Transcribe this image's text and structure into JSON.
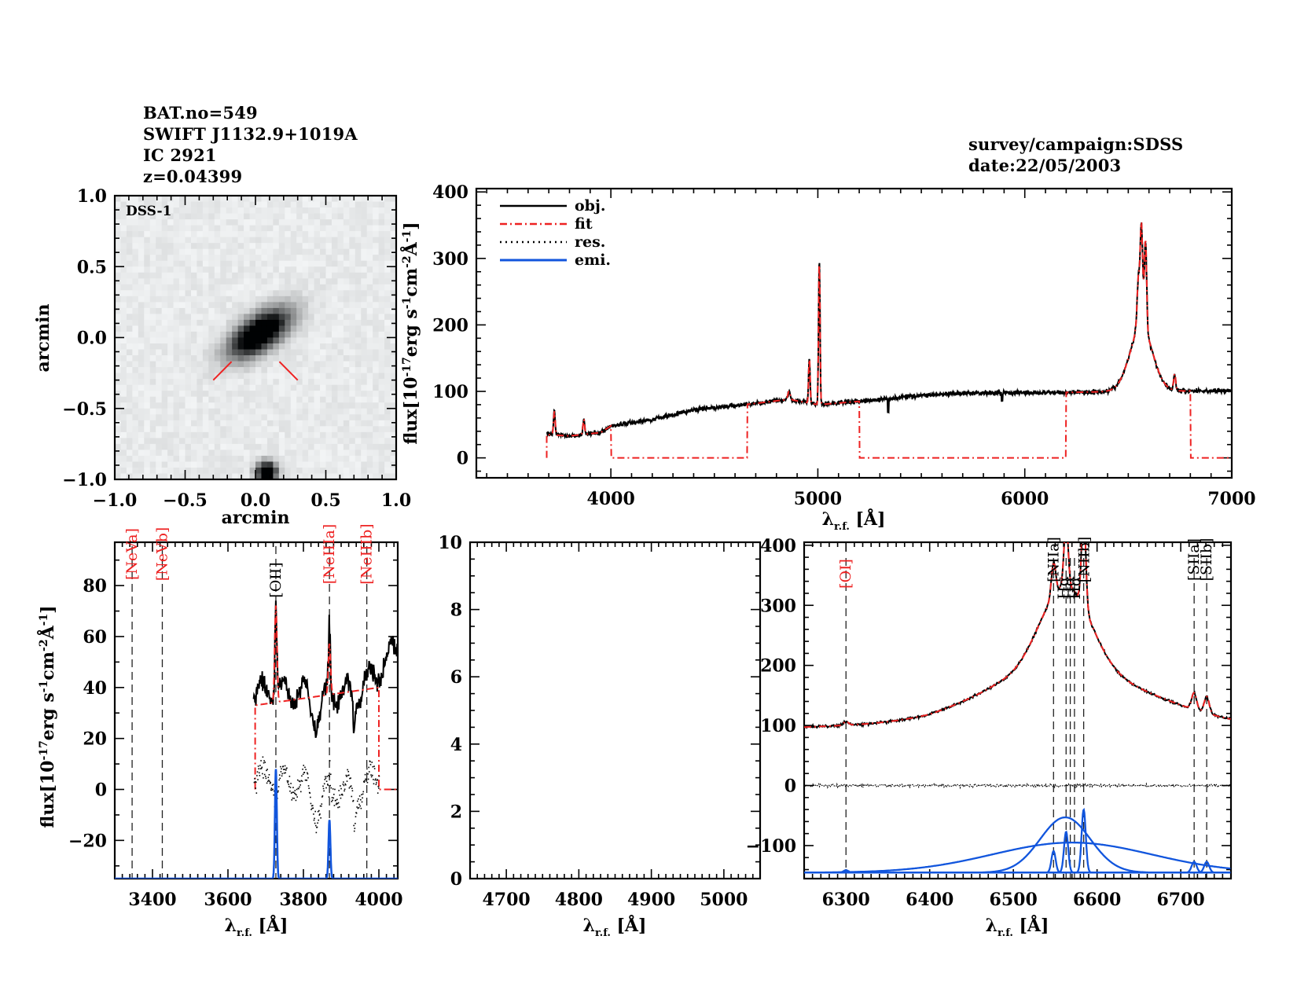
{
  "header": {
    "left_lines": [
      "BAT.no=549",
      "SWIFT J1132.9+1019A",
      "IC 2921",
      "z=0.04399"
    ],
    "right_lines": [
      "survey/campaign:SDSS",
      "date:22/05/2003"
    ]
  },
  "colors": {
    "obj": "#000000",
    "fit": "#ee2222",
    "res": "#000000",
    "emi": "#1155dd",
    "line_label_red": "#ee2222",
    "line_label_black": "#000000"
  },
  "chart_data": [
    {
      "id": "image",
      "type": "heatmap",
      "title": "",
      "label": "DSS-1",
      "xlabel": "arcmin",
      "ylabel": "arcmin",
      "xlim": [
        -1.0,
        1.0
      ],
      "ylim": [
        -1.0,
        1.0
      ],
      "xticks": [
        "-1.0",
        "-0.5",
        "0.0",
        "0.5",
        "1.0"
      ],
      "yticks": [
        "1.0",
        "0.5",
        "0.0",
        "-0.5",
        "-1.0"
      ],
      "sources": [
        {
          "name": "target galaxy",
          "x": 0.03,
          "y": 0.03,
          "major": 0.17,
          "minor": 0.08,
          "angle_deg": 35
        },
        {
          "name": "compact source",
          "x": 0.08,
          "y": -0.95,
          "major": 0.05,
          "minor": 0.05,
          "angle_deg": 0
        }
      ],
      "markers": [
        {
          "x1": -0.3,
          "y1": -0.3,
          "x2": -0.17,
          "y2": -0.17
        },
        {
          "x1": 0.17,
          "y1": -0.17,
          "x2": 0.3,
          "y2": -0.3
        }
      ]
    },
    {
      "id": "full",
      "type": "line",
      "xlabel": "λr.f. [Å]",
      "ylabel": "flux[10^-17 erg s^-1 cm^-2 Å^-1]",
      "xlim": [
        3350,
        7000
      ],
      "ylim": [
        -30,
        405
      ],
      "xticks": [
        4000,
        5000,
        6000,
        7000
      ],
      "yticks": [
        0,
        100,
        200,
        300,
        400
      ],
      "legend": {
        "position": "top-left",
        "entries": [
          "obj.",
          "fit",
          "res.",
          "emi."
        ]
      },
      "continuum": [
        [
          3690,
          35
        ],
        [
          3800,
          33
        ],
        [
          3950,
          38
        ],
        [
          4000,
          48
        ],
        [
          4200,
          58
        ],
        [
          4400,
          72
        ],
        [
          4700,
          82
        ],
        [
          4860,
          88
        ],
        [
          5000,
          80
        ],
        [
          5200,
          85
        ],
        [
          5500,
          94
        ],
        [
          5800,
          98
        ],
        [
          6100,
          98
        ],
        [
          6300,
          99
        ],
        [
          6450,
          100
        ],
        [
          7000,
          101
        ]
      ],
      "emission_lines": [
        {
          "name": "[OII]",
          "wave": 3727,
          "peak": 70,
          "sigma": 4
        },
        {
          "name": "[NeIII]",
          "wave": 3869,
          "peak": 58,
          "sigma": 4
        },
        {
          "name": "Hβ",
          "wave": 4861,
          "peak": 100,
          "sigma": 6
        },
        {
          "name": "[OIII]a",
          "wave": 4959,
          "peak": 150,
          "sigma": 3.5
        },
        {
          "name": "[OIII]b",
          "wave": 5007,
          "peak": 298,
          "sigma": 3.5
        },
        {
          "name": "Hα+[NII]",
          "wave": 6563,
          "peak": 315,
          "sigma": 6
        },
        {
          "name": "[SII]",
          "wave": 6724,
          "peak": 125,
          "sigma": 5
        }
      ],
      "fit_windows": [
        [
          3690,
          4000
        ],
        [
          4660,
          5200
        ],
        [
          6200,
          6800
        ]
      ],
      "fit_window_ends": [
        7000
      ]
    },
    {
      "id": "oii_neon",
      "type": "line",
      "xlabel": "λr.f. [Å]",
      "ylabel": "flux[10^-17 erg s^-1 cm^-2 Å^-1]",
      "xlim": [
        3300,
        4050
      ],
      "ylim": [
        -35,
        97
      ],
      "xticks": [
        3400,
        3600,
        3800,
        4000
      ],
      "yticks": [
        -20,
        0,
        20,
        40,
        60,
        80
      ],
      "lines": [
        {
          "label": "[NeVa]",
          "wave": 3346,
          "color": "red"
        },
        {
          "label": "[NeVb]",
          "wave": 3426,
          "color": "red"
        },
        {
          "label": "[OII]",
          "wave": 3727,
          "color": "black"
        },
        {
          "label": "[NeIIIa]",
          "wave": 3869,
          "color": "red"
        },
        {
          "label": "[NeIIIb]",
          "wave": 3968,
          "color": "red"
        }
      ],
      "obj_range": [
        3668,
        4050
      ],
      "fit_range": [
        3672,
        4000
      ],
      "fit_continuum": [
        [
          3672,
          33
        ],
        [
          4000,
          40
        ]
      ],
      "emi_baseline": -35,
      "emi_peaks": [
        {
          "wave": 3727,
          "height": 43,
          "sigma": 2.5
        },
        {
          "wave": 3869,
          "height": 23,
          "sigma": 2.5
        }
      ]
    },
    {
      "id": "hbeta",
      "type": "line",
      "xlabel": "λr.f. [Å]",
      "ylabel": "",
      "xlim": [
        4650,
        5050
      ],
      "ylim": [
        0,
        10
      ],
      "xticks": [
        4700,
        4800,
        4900,
        5000
      ],
      "yticks": [
        0,
        2,
        4,
        6,
        8,
        10
      ],
      "series": []
    },
    {
      "id": "halpha",
      "type": "line",
      "xlabel": "λr.f. [Å]",
      "ylabel": "",
      "xlim": [
        6250,
        6760
      ],
      "ylim": [
        -155,
        405
      ],
      "xticks": [
        6300,
        6400,
        6500,
        6600,
        6700
      ],
      "yticks": [
        -100,
        0,
        100,
        200,
        300,
        400
      ],
      "lines": [
        {
          "label": "[OI]",
          "wave": 6300,
          "color": "red"
        },
        {
          "label": "[NIIa]",
          "wave": 6548,
          "color": "black"
        },
        {
          "label": "Hα",
          "wave": 6563,
          "color": "black"
        },
        {
          "label": "Hα_br",
          "wave": 6568,
          "color": "black"
        },
        {
          "label": "Hα_br",
          "wave": 6573,
          "color": "black"
        },
        {
          "label": "[NIIb]",
          "wave": 6584,
          "color": "black"
        },
        {
          "label": "[SIIa]",
          "wave": 6716,
          "color": "black"
        },
        {
          "label": "[SIIb]",
          "wave": 6731,
          "color": "black"
        }
      ],
      "emi_baseline": -145,
      "emi_components": [
        {
          "name": "[OI]",
          "wave": 6300,
          "height": 4,
          "sigma": 3
        },
        {
          "name": "[NIIa]",
          "wave": 6548,
          "height": 36,
          "sigma": 2.5
        },
        {
          "name": "Hα narrow",
          "wave": 6563,
          "height": 68,
          "sigma": 2.5
        },
        {
          "name": "[NIIb]",
          "wave": 6584,
          "height": 105,
          "sigma": 2.5
        },
        {
          "name": "Hα broad 1",
          "wave": 6562,
          "height": 92,
          "sigma": 30
        },
        {
          "name": "Hα broad 2",
          "wave": 6570,
          "height": 50,
          "sigma": 95
        },
        {
          "name": "[SIIa]",
          "wave": 6716,
          "height": 18,
          "sigma": 3
        },
        {
          "name": "[SIIb]",
          "wave": 6731,
          "height": 18,
          "sigma": 3
        }
      ],
      "continuum": [
        [
          6250,
          97
        ],
        [
          6400,
          103
        ],
        [
          6480,
          117
        ],
        [
          6760,
          100
        ]
      ]
    }
  ]
}
